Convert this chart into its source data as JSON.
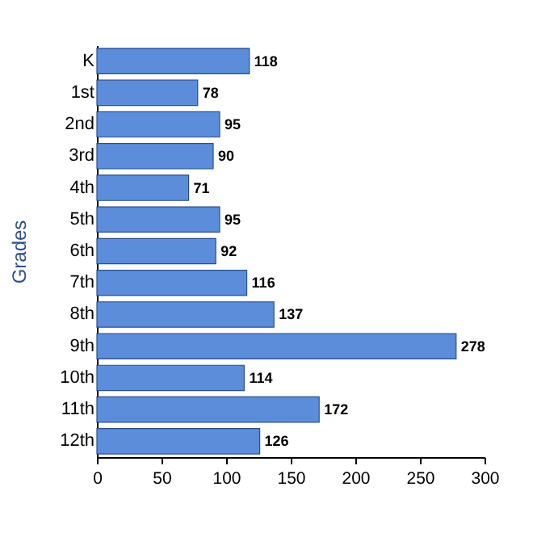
{
  "chart_data": {
    "type": "bar",
    "orientation": "horizontal",
    "ylabel": "Grades",
    "categories": [
      "K",
      "1st",
      "2nd",
      "3rd",
      "4th",
      "5th",
      "6th",
      "7th",
      "8th",
      "9th",
      "10th",
      "11th",
      "12th"
    ],
    "values": [
      118,
      78,
      95,
      90,
      71,
      95,
      92,
      116,
      137,
      278,
      114,
      172,
      126
    ],
    "color": "#5b8ddb",
    "xlim": [
      0,
      300
    ],
    "xticks": [
      0,
      50,
      100,
      150,
      200,
      250,
      300
    ],
    "data_labels": true,
    "grid": false
  }
}
